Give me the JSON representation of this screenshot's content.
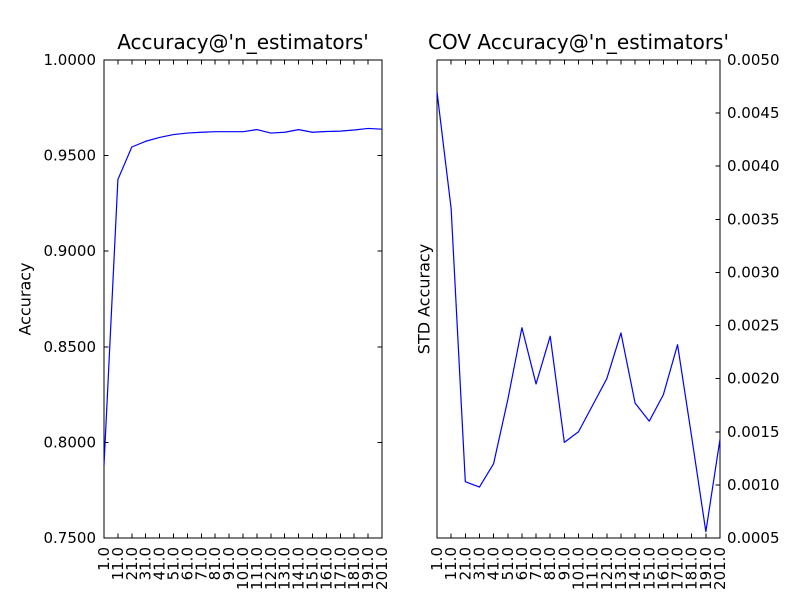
{
  "figure": {
    "background": "#ffffff",
    "axis_color": "#000000",
    "text_color": "#000000",
    "line_color": "#0000ff"
  },
  "chart_data": [
    {
      "type": "line",
      "title": "Accuracy@'n_estimators'",
      "xlabel": "",
      "ylabel": "Accuracy",
      "legend": "none",
      "grid": false,
      "x": [
        1,
        11,
        21,
        31,
        41,
        51,
        61,
        71,
        81,
        91,
        101,
        111,
        121,
        131,
        141,
        151,
        161,
        171,
        181,
        191,
        201
      ],
      "x_tick_labels": [
        "1.0",
        "11.0",
        "21.0",
        "31.0",
        "41.0",
        "51.0",
        "61.0",
        "71.0",
        "81.0",
        "91.0",
        "101.0",
        "111.0",
        "121.0",
        "131.0",
        "141.0",
        "151.0",
        "161.0",
        "171.0",
        "181.0",
        "191.0",
        "201.0"
      ],
      "x_tick_rotation": 90,
      "y": [
        0.788,
        0.9375,
        0.9545,
        0.9575,
        0.9595,
        0.961,
        0.9618,
        0.9622,
        0.9625,
        0.9625,
        0.9625,
        0.9636,
        0.9618,
        0.9622,
        0.9636,
        0.9622,
        0.9626,
        0.9628,
        0.9634,
        0.9642,
        0.9638
      ],
      "xlim": [
        1,
        201
      ],
      "ylim": [
        0.75,
        1.0
      ],
      "y_ticks": [
        0.75,
        0.8,
        0.85,
        0.9,
        0.95,
        1.0
      ],
      "y_tick_labels": [
        "0.7500",
        "0.8000",
        "0.8500",
        "0.9000",
        "0.9500",
        "1.0000"
      ],
      "y_tick_label_side": "left",
      "y_tick_marks_sides": [
        "left",
        "right"
      ]
    },
    {
      "type": "line",
      "title": "COV Accuracy@'n_estimators'",
      "xlabel": "",
      "ylabel": "STD Accuracy",
      "legend": "none",
      "grid": false,
      "x": [
        1,
        11,
        21,
        31,
        41,
        51,
        61,
        71,
        81,
        91,
        101,
        111,
        121,
        131,
        141,
        151,
        161,
        171,
        181,
        191,
        201
      ],
      "x_tick_labels": [
        "1.0",
        "11.0",
        "21.0",
        "31.0",
        "41.0",
        "51.0",
        "61.0",
        "71.0",
        "81.0",
        "91.0",
        "101.0",
        "111.0",
        "121.0",
        "131.0",
        "141.0",
        "151.0",
        "161.0",
        "171.0",
        "181.0",
        "191.0",
        "201.0"
      ],
      "x_tick_rotation": 90,
      "y": [
        0.0047,
        0.0036,
        0.00103,
        0.00098,
        0.0012,
        0.0018,
        0.00248,
        0.00195,
        0.0024,
        0.0014,
        0.0015,
        0.00175,
        0.002,
        0.00243,
        0.00177,
        0.0016,
        0.00185,
        0.00232,
        0.00145,
        0.00056,
        0.00143
      ],
      "xlim": [
        1,
        201
      ],
      "ylim": [
        0.0005,
        0.005
      ],
      "y_ticks": [
        0.0005,
        0.001,
        0.0015,
        0.002,
        0.0025,
        0.003,
        0.0035,
        0.004,
        0.0045,
        0.005
      ],
      "y_tick_labels": [
        "0.0005",
        "0.0010",
        "0.0015",
        "0.0020",
        "0.0025",
        "0.0030",
        "0.0035",
        "0.0040",
        "0.0045",
        "0.0050"
      ],
      "y_tick_label_side": "right",
      "y_tick_marks_sides": [
        "right"
      ]
    }
  ]
}
